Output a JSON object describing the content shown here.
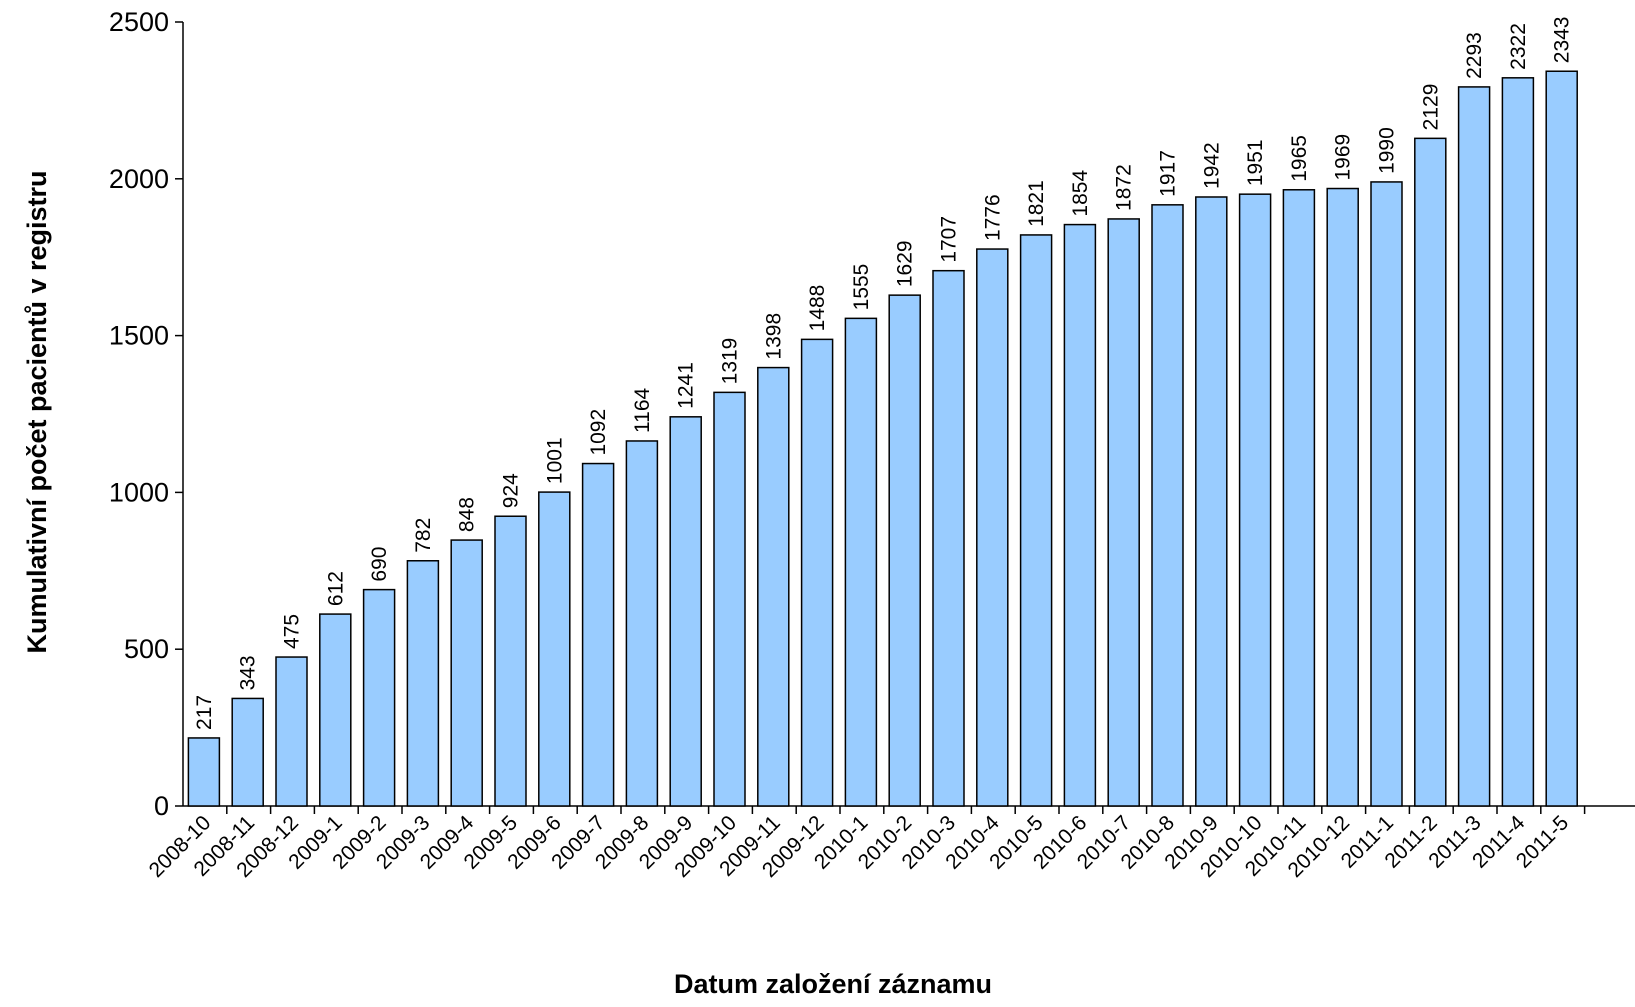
{
  "chart_data": {
    "type": "bar",
    "title": "",
    "xlabel": "Datum založení záznamu",
    "ylabel": "Kumulativní počet pacientů v registru",
    "ylim": [
      0,
      2500
    ],
    "yticks": [
      0,
      500,
      1000,
      1500,
      2000,
      2500
    ],
    "grid": false,
    "legend": "none",
    "bar_color": "#99CCFF",
    "bar_edge_color": "#000000",
    "categories": [
      "2008-10",
      "2008-11",
      "2008-12",
      "2009-1",
      "2009-2",
      "2009-3",
      "2009-4",
      "2009-5",
      "2009-6",
      "2009-7",
      "2009-8",
      "2009-9",
      "2009-10",
      "2009-11",
      "2009-12",
      "2010-1",
      "2010-2",
      "2010-3",
      "2010-4",
      "2010-5",
      "2010-6",
      "2010-7",
      "2010-8",
      "2010-9",
      "2010-10",
      "2010-11",
      "2010-12",
      "2011-1",
      "2011-2",
      "2011-3",
      "2011-4",
      "2011-5"
    ],
    "values": [
      217,
      343,
      475,
      612,
      690,
      782,
      848,
      924,
      1001,
      1092,
      1164,
      1241,
      1319,
      1398,
      1488,
      1555,
      1629,
      1707,
      1776,
      1821,
      1854,
      1872,
      1917,
      1942,
      1951,
      1965,
      1969,
      1990,
      2129,
      2293,
      2322,
      2343
    ]
  }
}
